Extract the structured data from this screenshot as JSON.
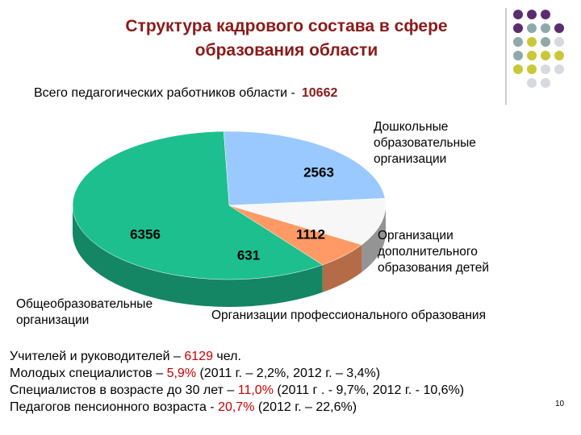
{
  "chart_data": {
    "type": "pie",
    "title": "Структура кадрового состава в сфере образования области",
    "subtitle": "Всего педагогических работников области  -",
    "total": 10662,
    "categories": [
      "Дошкольные образовательные организации",
      "Организации дополнительного образования детей",
      "Организации профессионального образования",
      "Общеобразовательные организации"
    ],
    "values": [
      2563,
      1112,
      631,
      6356
    ],
    "colors": [
      "#99c9ff",
      "#f7f7f7",
      "#ff9a66",
      "#1dbf8f"
    ]
  },
  "notes": [
    [
      "Учителей  и руководителей – ",
      "6129",
      " чел."
    ],
    [
      "Молодых специалистов – ",
      "5,9%",
      " (2011 г. – 2,2%, 2012 г. – 3,4%)"
    ],
    [
      "Специалистов в возрасте до 30 лет – ",
      "11,0%",
      " (2011 г . - 9,7%, 2012 г. - 10,6%)"
    ],
    [
      "Педагогов пенсионного возраста  - ",
      "20,7%",
      " (2012 г. – 22,6%)"
    ]
  ],
  "slide_number": "10"
}
